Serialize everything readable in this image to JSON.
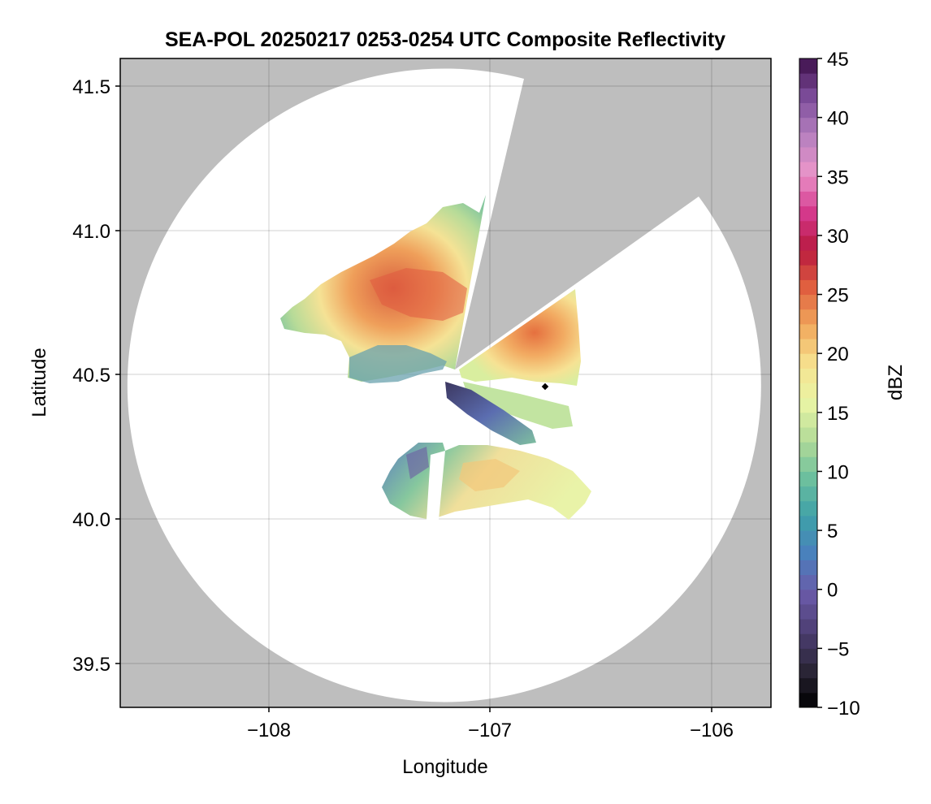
{
  "chart_data": {
    "type": "heatmap",
    "title": "SEA-POL 20250217 0253-0254 UTC Composite Reflectivity",
    "xlabel": "Longitude",
    "ylabel": "Latitude",
    "xlim": [
      -108.68,
      -105.74
    ],
    "ylim": [
      39.35,
      41.6
    ],
    "xticks": [
      -108,
      -107,
      -106
    ],
    "xtick_labels": [
      "−108",
      "−107",
      "−106"
    ],
    "yticks": [
      39.5,
      40.0,
      40.5,
      41.0,
      41.5
    ],
    "ytick_labels": [
      "39.5",
      "40.0",
      "40.5",
      "41.0",
      "41.5"
    ],
    "grid": true,
    "background_color": "#bebebe",
    "radar_center": {
      "lon": -107.18,
      "lat": 40.5
    },
    "radar_coverage_radius_deg_lon": 1.43,
    "blocked_sectors_deg_azimuth": [
      [
        13,
        64
      ]
    ],
    "marker": {
      "lon": -106.75,
      "lat": 40.455,
      "shape": "diamond"
    },
    "colorbar": {
      "label": "dBZ",
      "vmin": -10,
      "vmax": 45,
      "step": 1.25,
      "ticks": [
        -10,
        -5,
        0,
        5,
        10,
        15,
        20,
        25,
        30,
        35,
        40,
        45
      ],
      "tick_labels": [
        "−10",
        "−5",
        "0",
        "5",
        "10",
        "15",
        "20",
        "25",
        "30",
        "35",
        "40",
        "45"
      ],
      "colormap": [
        "#000000",
        "#2b2638",
        "#4d3f73",
        "#6a5aa8",
        "#4a7fbd",
        "#3ea1a8",
        "#6dbf9e",
        "#b3db98",
        "#e9f5a5",
        "#f6e28f",
        "#f1a85c",
        "#e0603f",
        "#b8193f",
        "#d63a8f",
        "#e995c9",
        "#b57fbf",
        "#7c4c9a",
        "#3d0f4a"
      ]
    },
    "echo_regions": [
      {
        "name": "northwest",
        "lon": [
          -107.9,
          -107.05
        ],
        "lat": [
          40.55,
          41.1
        ],
        "dbz_range": [
          0,
          30
        ]
      },
      {
        "name": "northeast",
        "lon": [
          -107.12,
          -106.55
        ],
        "lat": [
          40.48,
          40.8
        ],
        "dbz_range": [
          10,
          28
        ]
      },
      {
        "name": "south",
        "lon": [
          -107.5,
          -106.5
        ],
        "lat": [
          39.9,
          40.28
        ],
        "dbz_range": [
          5,
          24
        ]
      }
    ]
  }
}
